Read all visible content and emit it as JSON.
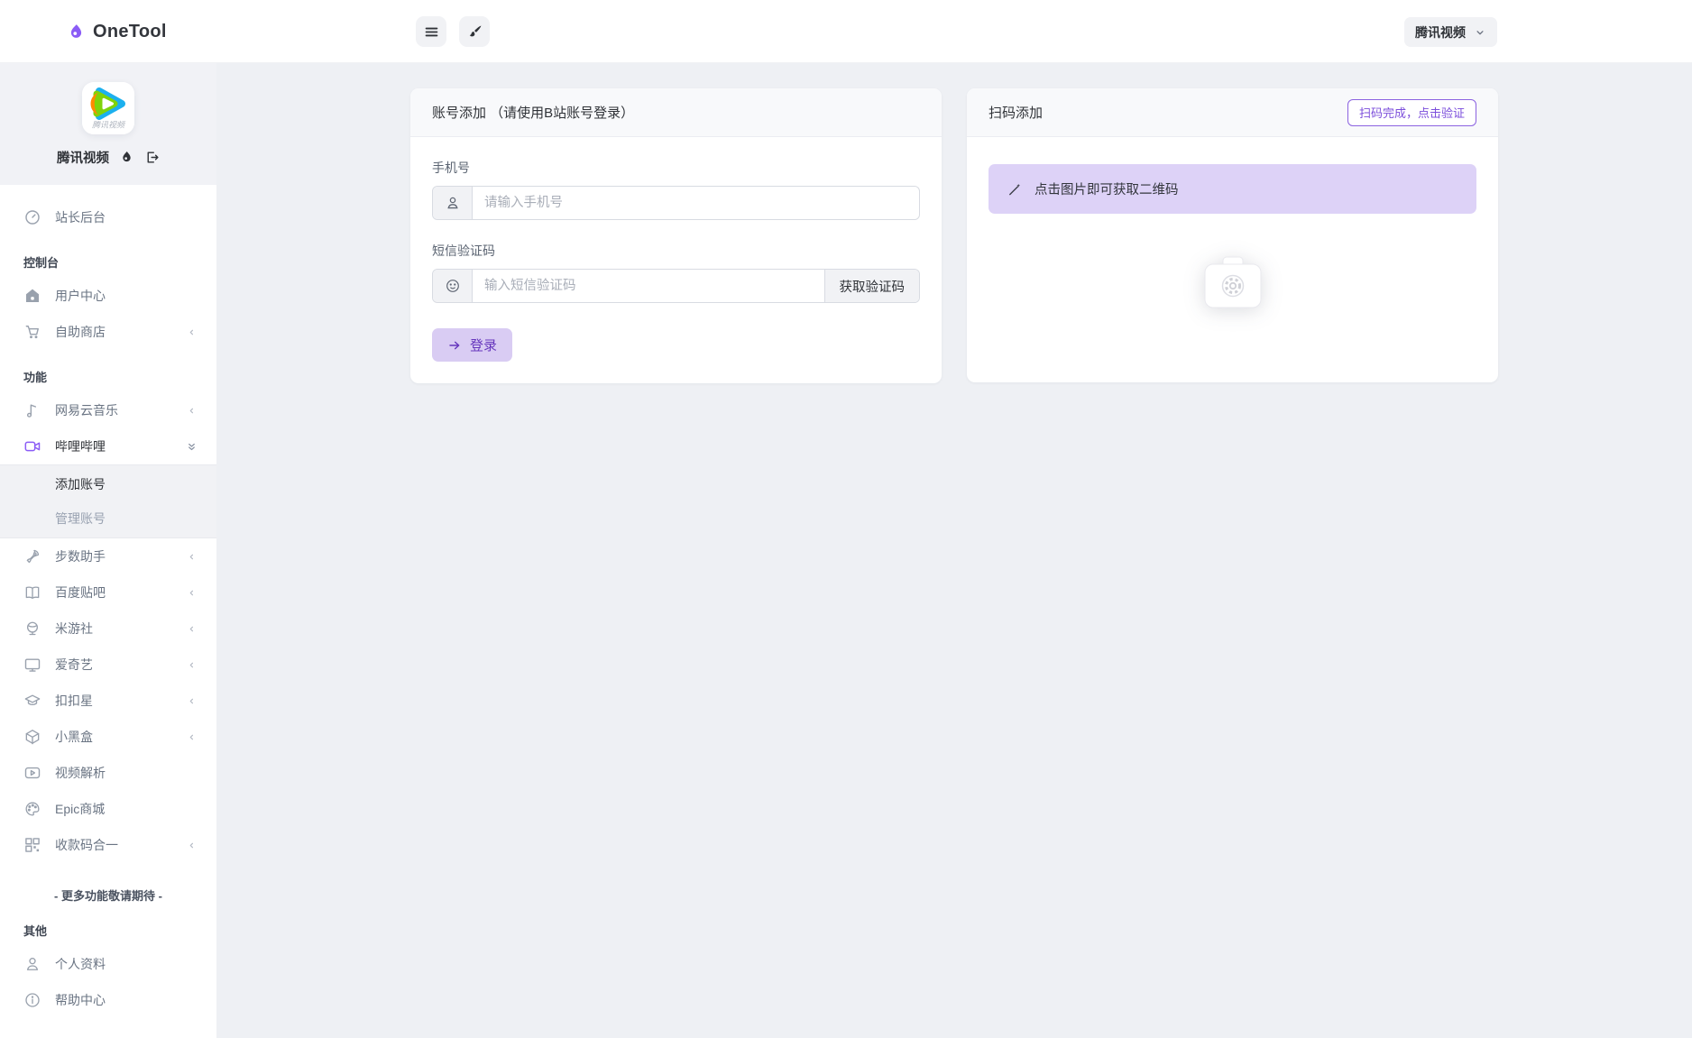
{
  "header": {
    "brand": "OneTool",
    "service_dropdown_label": "腾讯视频"
  },
  "sidebar": {
    "profile": {
      "name": "腾讯视频",
      "logo_caption": "腾讯视频",
      "action_icons": [
        "droplet-icon",
        "logout-icon"
      ]
    },
    "sections": [
      {
        "items": [
          {
            "id": "site-admin",
            "label": "站长后台",
            "icon": "gauge-icon"
          }
        ]
      },
      {
        "label": "控制台",
        "items": [
          {
            "id": "user-center",
            "label": "用户中心",
            "icon": "home-icon"
          },
          {
            "id": "self-service-store",
            "label": "自助商店",
            "icon": "cart-icon",
            "collapsible": true
          }
        ]
      },
      {
        "label": "功能",
        "items": [
          {
            "id": "netease-music",
            "label": "网易云音乐",
            "icon": "music-note-icon",
            "collapsible": true
          },
          {
            "id": "bilibili",
            "label": "哔哩哔哩",
            "icon": "video-camera-icon",
            "active": true,
            "expanded": true,
            "submenu": [
              {
                "id": "add-account",
                "label": "添加账号",
                "active": true
              },
              {
                "id": "manage-account",
                "label": "管理账号"
              }
            ]
          },
          {
            "id": "step-helper",
            "label": "步数助手",
            "icon": "rocket-icon",
            "collapsible": true
          },
          {
            "id": "baidu-tieba",
            "label": "百度贴吧",
            "icon": "book-icon",
            "collapsible": true
          },
          {
            "id": "miyoushe",
            "label": "米游社",
            "icon": "globe-icon",
            "collapsible": true
          },
          {
            "id": "iqiyi",
            "label": "爱奇艺",
            "icon": "monitor-icon",
            "collapsible": true
          },
          {
            "id": "koukouxing",
            "label": "扣扣星",
            "icon": "graduation-cap-icon",
            "collapsible": true
          },
          {
            "id": "xiaoheihe",
            "label": "小黑盒",
            "icon": "box-icon",
            "collapsible": true
          },
          {
            "id": "video-parse",
            "label": "视频解析",
            "icon": "video-play-icon"
          },
          {
            "id": "epic-store",
            "label": "Epic商城",
            "icon": "palette-icon"
          },
          {
            "id": "qr-merge",
            "label": "收款码合一",
            "icon": "qr-code-icon",
            "collapsible": true
          }
        ],
        "note": "- 更多功能敬请期待 -"
      },
      {
        "label": "其他",
        "items": [
          {
            "id": "profile",
            "label": "个人资料",
            "icon": "person-icon"
          },
          {
            "id": "help-center",
            "label": "帮助中心",
            "icon": "info-icon"
          }
        ]
      }
    ]
  },
  "main": {
    "account_card": {
      "title": "账号添加 （请使用B站账号登录）",
      "phone_label": "手机号",
      "phone_placeholder": "请输入手机号",
      "phone_value": "",
      "sms_label": "短信验证码",
      "sms_placeholder": "输入短信验证码",
      "sms_value": "",
      "get_code_button": "获取验证码",
      "login_button": "登录"
    },
    "qr_card": {
      "title": "扫码添加",
      "verify_button": "扫码完成，点击验证",
      "banner_text": "点击图片即可获取二维码"
    }
  },
  "colors": {
    "accent_purple": "#8b5cf6",
    "accent_purple_dark": "#6636bd",
    "login_button_bg": "#d9ccf3",
    "banner_bg": "#ddd2f7",
    "page_bg": "#eef0f4",
    "panel_gray": "#f1f2f6"
  }
}
